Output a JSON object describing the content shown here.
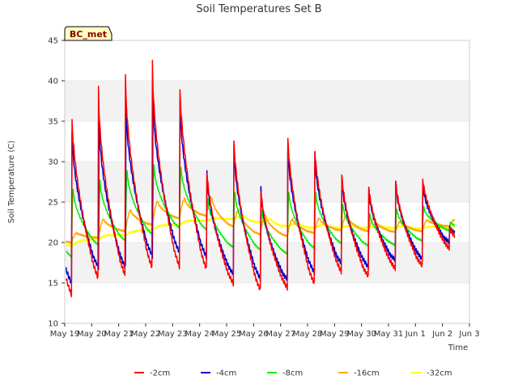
{
  "chart_data": {
    "type": "line",
    "title": "Soil Temperatures Set B",
    "xlabel": "Time",
    "ylabel": "Soil Temperature (C)",
    "badge": "BC_met",
    "ylim": [
      10,
      45
    ],
    "yticks": [
      10,
      15,
      20,
      25,
      30,
      35,
      40,
      45
    ],
    "xlim": [
      0,
      15
    ],
    "xtick_positions": [
      0,
      1,
      2,
      3,
      4,
      5,
      6,
      7,
      8,
      9,
      10,
      11,
      12,
      13,
      14,
      15
    ],
    "xtick_labels": [
      "May 19",
      "May 20",
      "May 21",
      "May 22",
      "May 23",
      "May 24",
      "May 25",
      "May 26",
      "May 27",
      "May 28",
      "May 29",
      "May 30",
      "May 31",
      "Jun 1",
      "Jun 2",
      "Jun 3"
    ],
    "x_units": "days since May 19",
    "grid": "horizontal bands",
    "legend_position": "bottom",
    "series": [
      {
        "name": "-2cm",
        "color": "#ff0000",
        "daily_min": [
          13.5,
          15.5,
          15.8,
          16.8,
          17.0,
          16.7,
          14.9,
          14.1,
          14.4,
          14.9,
          16.4,
          15.8,
          16.8,
          17.1,
          19.3
        ],
        "daily_max": [
          37.6,
          39.1,
          41.0,
          42.3,
          41.7,
          30.6,
          34.9,
          28.1,
          35.2,
          33.4,
          30.0,
          28.2,
          28.9,
          29.0,
          22.0
        ]
      },
      {
        "name": "-4cm",
        "color": "#0000cc",
        "daily_min": [
          15.0,
          16.9,
          16.9,
          18.3,
          18.8,
          18.2,
          16.1,
          15.5,
          15.4,
          16.3,
          17.4,
          17.0,
          17.8,
          18.0,
          20.0
        ],
        "daily_max": [
          33.9,
          35.3,
          37.0,
          38.1,
          37.5,
          28.7,
          32.2,
          26.8,
          32.2,
          31.1,
          28.2,
          26.8,
          27.6,
          27.5,
          22.0
        ]
      },
      {
        "name": "-8cm",
        "color": "#00ee00",
        "daily_min": [
          18.2,
          19.7,
          20.2,
          21.0,
          21.8,
          21.6,
          19.4,
          19.1,
          18.6,
          19.3,
          19.9,
          19.6,
          19.7,
          20.2,
          21.5
        ],
        "daily_max": [
          26.7,
          27.6,
          29.0,
          29.5,
          29.4,
          25.3,
          26.3,
          24.0,
          26.3,
          26.1,
          24.8,
          23.5,
          24.2,
          24.4,
          22.5
        ]
      },
      {
        "name": "-16cm",
        "color": "#ffa500",
        "daily_min": [
          20.0,
          20.6,
          21.4,
          22.2,
          23.0,
          23.3,
          22.0,
          21.0,
          20.8,
          21.2,
          21.5,
          21.4,
          21.3,
          21.4,
          22.0
        ],
        "daily_max": [
          21.2,
          22.9,
          24.0,
          25.1,
          25.4,
          25.6,
          24.0,
          23.4,
          22.9,
          23.0,
          23.4,
          22.9,
          22.6,
          22.8,
          22.8
        ]
      },
      {
        "name": "-32cm",
        "color": "#ffff00",
        "daily_min": [
          19.6,
          20.4,
          20.9,
          21.6,
          22.2,
          22.7,
          22.9,
          22.5,
          22.0,
          21.8,
          21.8,
          21.8,
          21.8,
          21.7,
          21.8
        ],
        "daily_max": [
          20.2,
          20.9,
          21.4,
          22.1,
          22.7,
          23.0,
          23.3,
          22.9,
          22.4,
          22.2,
          22.1,
          22.1,
          22.1,
          22.0,
          22.0
        ]
      }
    ]
  }
}
